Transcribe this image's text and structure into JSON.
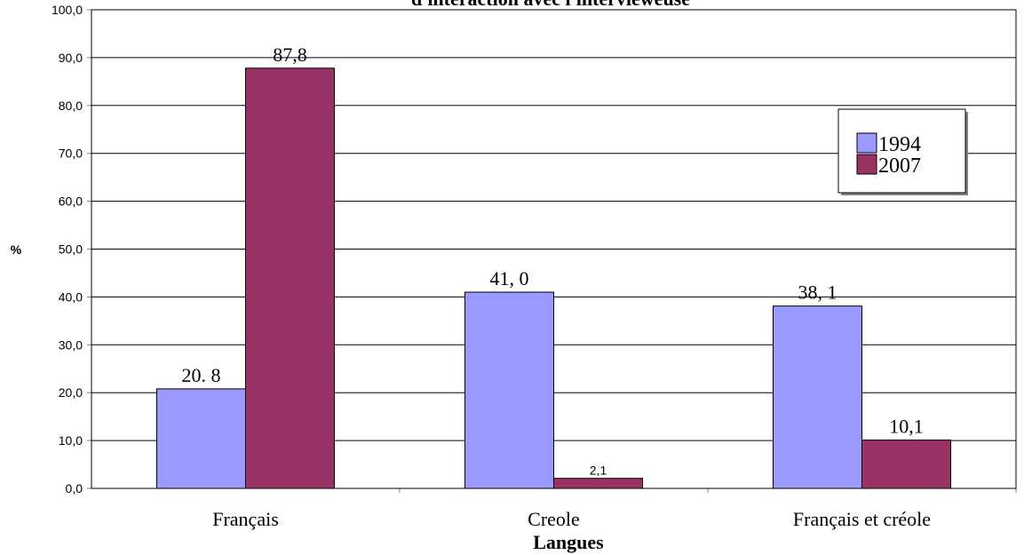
{
  "chart_data": {
    "type": "bar",
    "title": "d'interaction avec l'intervieweuse",
    "xlabel": "Langues",
    "ylabel": "%",
    "categories": [
      "Français",
      "Creole",
      "Français et créole"
    ],
    "series": [
      {
        "name": "1994",
        "color": "#9999ff",
        "values": [
          20.8,
          41.0,
          38.1
        ],
        "labels": [
          "20. 8",
          "41, 0",
          "38, 1"
        ]
      },
      {
        "name": "2007",
        "color": "#993366",
        "values": [
          87.8,
          2.1,
          10.1
        ],
        "labels": [
          "87,8",
          "2,1",
          "10,1"
        ]
      }
    ],
    "ylim": [
      0,
      100
    ],
    "yticks": [
      "0,0",
      "10,0",
      "20,0",
      "30,0",
      "40,0",
      "50,0",
      "60,0",
      "70,0",
      "80,0",
      "90,0",
      "100,0"
    ],
    "grid": true,
    "legend_position": "right"
  }
}
